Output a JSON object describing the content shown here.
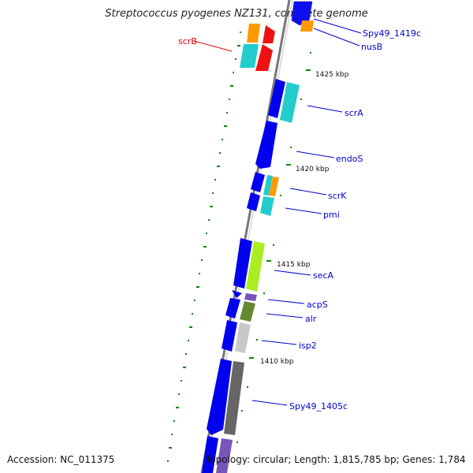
{
  "title": "Streptococcus pyogenes NZ131, complete genome",
  "accession_text": "Accession: NC_011375",
  "topology_text": "Topology: circular; Length: 1,815,785 bp; Genes: 1,784",
  "scale_labels": [
    "1425 kbp",
    "1420 kbp",
    "1415 kbp",
    "1410 kbp"
  ],
  "genes": [
    {
      "name": "Spy49_1419c",
      "color": "#0000cc"
    },
    {
      "name": "nusB",
      "color": "#0000cc"
    },
    {
      "name": "scrB",
      "color": "#dd0000"
    },
    {
      "name": "scrA",
      "color": "#0000cc"
    },
    {
      "name": "endoS",
      "color": "#0000cc"
    },
    {
      "name": "scrK",
      "color": "#0000cc"
    },
    {
      "name": "pmi",
      "color": "#0000cc"
    },
    {
      "name": "secA",
      "color": "#0000cc"
    },
    {
      "name": "acpS",
      "color": "#0000cc"
    },
    {
      "name": "alr",
      "color": "#0000cc"
    },
    {
      "name": "isp2",
      "color": "#0000cc"
    },
    {
      "name": "Spy49_1405c",
      "color": "#0000cc"
    }
  ],
  "colors": {
    "cds_forward": "#0000ee",
    "cyan": "#22cccc",
    "orange": "#ff9900",
    "red": "#ee0000",
    "lime": "#aaee22",
    "olive": "#668833",
    "purple": "#7755bb",
    "light_gray": "#c8c8c8",
    "dark_gray": "#666666",
    "backbone": "#888888",
    "gc_green": "#008800",
    "label_blue": "#0000cc",
    "label_red": "#dd0000"
  }
}
